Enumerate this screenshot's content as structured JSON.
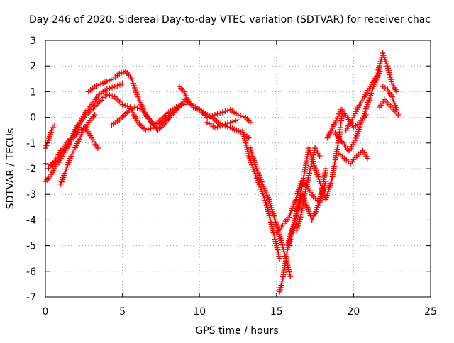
{
  "chart_data": {
    "type": "scatter",
    "title": "Day 246 of 2020, Sidereal Day-to-day VTEC variation (SDTVAR) for receiver chac",
    "xlabel": "GPS time / hours",
    "ylabel": "SDTVAR / TECUs",
    "xlim": [
      0,
      25
    ],
    "ylim": [
      -7,
      3
    ],
    "x_ticks": [
      "0",
      "5",
      "10",
      "15",
      "20",
      "25"
    ],
    "y_ticks": [
      "3",
      "2",
      "1",
      "0",
      "-1",
      "-2",
      "-3",
      "-4",
      "-5",
      "-6",
      "-7"
    ],
    "grid": true,
    "marker": "+",
    "color": "#ff0000",
    "series": [
      {
        "x": [
          0.0,
          0.2,
          0.4,
          0.6
        ],
        "y": [
          -1.2,
          -0.9,
          -0.5,
          -0.3
        ]
      },
      {
        "x": [
          0.0,
          0.3,
          0.6,
          1.0,
          1.4,
          1.8,
          2.2,
          2.6,
          3.0,
          3.4
        ],
        "y": [
          -2.5,
          -2.3,
          -2.0,
          -1.6,
          -1.2,
          -0.8,
          -0.5,
          -0.4,
          -0.8,
          -1.2
        ]
      },
      {
        "x": [
          0.0,
          0.5,
          1.0,
          1.5,
          2.0,
          2.5,
          3.0,
          3.5,
          4.0,
          4.5,
          5.0,
          5.5,
          6.0,
          6.5,
          7.0,
          7.5,
          8.0,
          8.5,
          9.0
        ],
        "y": [
          -1.8,
          -1.9,
          -1.5,
          -1.0,
          -0.4,
          0.0,
          0.3,
          0.6,
          0.9,
          0.8,
          0.5,
          0.4,
          -0.2,
          -0.5,
          -0.4,
          -0.2,
          0.0,
          0.3,
          0.6
        ]
      },
      {
        "x": [
          0.2,
          0.6,
          1.0,
          1.4,
          1.8,
          2.2,
          2.6,
          3.0,
          3.5,
          4.0,
          4.5,
          5.0
        ],
        "y": [
          -2.0,
          -1.7,
          -1.3,
          -1.0,
          -0.7,
          -0.3,
          0.2,
          0.5,
          0.9,
          1.1,
          1.2,
          1.3
        ]
      },
      {
        "x": [
          1.0,
          1.3,
          1.6,
          2.0,
          2.4,
          2.8,
          3.2
        ],
        "y": [
          -2.6,
          -2.1,
          -1.6,
          -1.1,
          -0.6,
          -0.2,
          0.1
        ]
      },
      {
        "x": [
          2.8,
          3.2,
          3.6,
          4.0,
          4.4,
          4.8,
          5.2,
          5.6,
          6.0,
          6.5,
          7.0,
          7.5,
          8.0,
          8.5,
          9.0
        ],
        "y": [
          1.0,
          1.2,
          1.3,
          1.4,
          1.5,
          1.7,
          1.8,
          1.5,
          0.8,
          0.1,
          -0.3,
          -0.1,
          0.2,
          0.4,
          0.5
        ]
      },
      {
        "x": [
          4.3,
          4.8,
          5.3,
          5.8,
          6.3,
          6.8,
          7.3,
          7.8,
          8.3,
          8.8
        ],
        "y": [
          -0.3,
          -0.1,
          0.2,
          0.4,
          0.3,
          -0.1,
          -0.5,
          -0.2,
          0.2,
          0.5
        ]
      },
      {
        "x": [
          8.7,
          9.0,
          9.3,
          9.6,
          10.0,
          10.5,
          11.0,
          11.5,
          12.0,
          12.4,
          12.8,
          13.2
        ],
        "y": [
          1.2,
          1.0,
          0.6,
          0.4,
          0.3,
          0.1,
          -0.1,
          -0.3,
          -0.4,
          -0.5,
          -0.6,
          -0.8
        ]
      },
      {
        "x": [
          9.0,
          9.5,
          10.0,
          10.5,
          11.0,
          11.5,
          12.0,
          12.5,
          13.0,
          13.3
        ],
        "y": [
          0.7,
          0.5,
          0.3,
          0.0,
          0.1,
          0.2,
          0.3,
          0.1,
          0.0,
          -0.2
        ]
      },
      {
        "x": [
          10.5,
          11.0,
          11.5,
          12.0,
          12.5
        ],
        "y": [
          -0.2,
          -0.4,
          -0.3,
          -0.2,
          -0.1
        ]
      },
      {
        "x": [
          12.8,
          13.2,
          13.6,
          14.0,
          14.4,
          14.8,
          15.2
        ],
        "y": [
          -0.5,
          -1.5,
          -2.2,
          -2.8,
          -3.5,
          -4.5,
          -5.5
        ]
      },
      {
        "x": [
          13.3,
          13.7,
          14.1,
          14.5,
          14.9,
          15.3,
          15.6,
          15.9
        ],
        "y": [
          -1.2,
          -2.0,
          -2.6,
          -3.2,
          -4.0,
          -4.8,
          -5.5,
          -6.2
        ]
      },
      {
        "x": [
          15.2,
          15.4,
          15.6,
          15.8,
          16.1,
          16.4,
          16.7,
          17.0,
          17.3,
          17.6,
          17.9,
          18.2
        ],
        "y": [
          -6.8,
          -6.3,
          -5.6,
          -4.8,
          -4.2,
          -3.5,
          -3.0,
          -3.5,
          -4.0,
          -3.6,
          -3.0,
          -2.0
        ]
      },
      {
        "x": [
          15.0,
          15.4,
          15.8,
          16.2,
          16.6,
          17.0,
          17.4,
          17.8,
          18.2
        ],
        "y": [
          -4.5,
          -4.2,
          -3.9,
          -3.3,
          -2.5,
          -2.7,
          -3.1,
          -3.3,
          -2.5
        ]
      },
      {
        "x": [
          15.8,
          16.2,
          16.5,
          16.8,
          17.1,
          17.4,
          17.8,
          18.2,
          18.6,
          19.0,
          19.3
        ],
        "y": [
          -5.0,
          -4.0,
          -3.2,
          -2.2,
          -1.2,
          -1.8,
          -2.5,
          -3.2,
          -2.4,
          -1.0,
          0.3
        ]
      },
      {
        "x": [
          16.3,
          16.6,
          16.9,
          17.2,
          17.5,
          17.8
        ],
        "y": [
          -4.4,
          -3.8,
          -2.8,
          -2.0,
          -1.2,
          -1.5
        ]
      },
      {
        "x": [
          18.3,
          18.8,
          19.2,
          19.6,
          20.0,
          20.4,
          20.8
        ],
        "y": [
          -0.8,
          -0.2,
          0.3,
          0.0,
          -0.4,
          -0.2,
          0.1
        ]
      },
      {
        "x": [
          18.8,
          19.3,
          19.7,
          20.1,
          20.5,
          20.9,
          21.3,
          21.7
        ],
        "y": [
          -0.6,
          -1.0,
          -1.3,
          -0.9,
          -0.2,
          0.5,
          1.2,
          1.8
        ]
      },
      {
        "x": [
          19.0,
          19.4,
          19.8,
          20.2,
          20.6,
          20.9
        ],
        "y": [
          -1.4,
          -1.6,
          -1.8,
          -1.5,
          -1.3,
          -1.6
        ]
      },
      {
        "x": [
          19.5,
          19.9,
          20.3,
          20.7,
          21.1,
          21.5,
          21.9,
          22.2,
          22.5,
          22.8
        ],
        "y": [
          -0.5,
          -0.1,
          0.4,
          0.8,
          1.2,
          1.6,
          2.5,
          2.0,
          1.3,
          1.0
        ]
      },
      {
        "x": [
          21.7,
          22.0,
          22.3,
          22.6,
          22.9
        ],
        "y": [
          0.4,
          0.7,
          0.5,
          0.3,
          0.1
        ]
      },
      {
        "x": [
          21.9,
          22.2,
          22.5,
          22.8
        ],
        "y": [
          1.2,
          1.1,
          0.8,
          0.3
        ]
      }
    ]
  }
}
